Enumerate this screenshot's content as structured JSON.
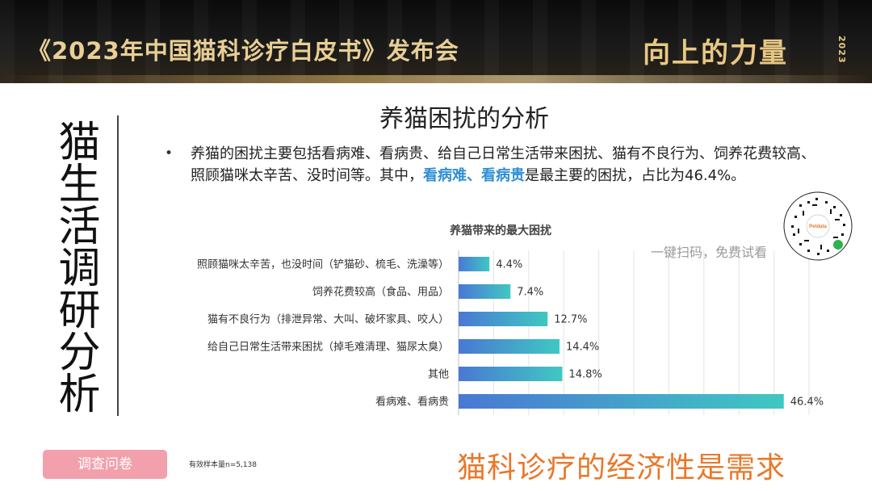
{
  "header": {
    "event_title": "《2023年中国猫科诊疗白皮书》发布会",
    "slogan": "向上的力量",
    "slogan_year": "2023"
  },
  "side_title": "猫生活调研分析",
  "page_title": "养猫困扰的分析",
  "bullet": {
    "marker": "•",
    "text_part1": "养猫的困扰主要包括看病难、看病贵、给自己日常生活带来困扰、猫有不良行为、饲养花费较高、照顾猫咪太辛苦、没时间等。其中，",
    "highlight": "看病难、看病贵",
    "text_part2": "是最主要的困扰，占比为46.4%。"
  },
  "qr": {
    "brand": "Petdata",
    "scan_text": "一键扫码，免费试看"
  },
  "chart_data": {
    "type": "bar",
    "orientation": "horizontal",
    "title": "养猫带来的最大困扰",
    "categories": [
      "照顾猫咪太辛苦，也没时间（铲猫砂、梳毛、洗澡等）",
      "饲养花费较高（食品、用品）",
      "猫有不良行为（排泄异常、大叫、破坏家具、咬人）",
      "给自己日常生活带来困扰（掉毛难清理、猫尿太臭）",
      "其他",
      "看病难、看病贵"
    ],
    "values": [
      4.4,
      7.4,
      12.7,
      14.4,
      14.8,
      46.4
    ],
    "data_labels": [
      "4.4%",
      "7.4%",
      "12.7%",
      "14.4%",
      "14.8%",
      "46.4%"
    ],
    "xlim": [
      0,
      50
    ],
    "grid": "vertical",
    "bar_color_start": "#4a78d4",
    "bar_color_end": "#3fc8c2"
  },
  "footer": {
    "survey_button": "调查问卷",
    "sample_note": "有效样本量n=5,138",
    "conclusion": "猫科诊疗的经济性是需求"
  }
}
